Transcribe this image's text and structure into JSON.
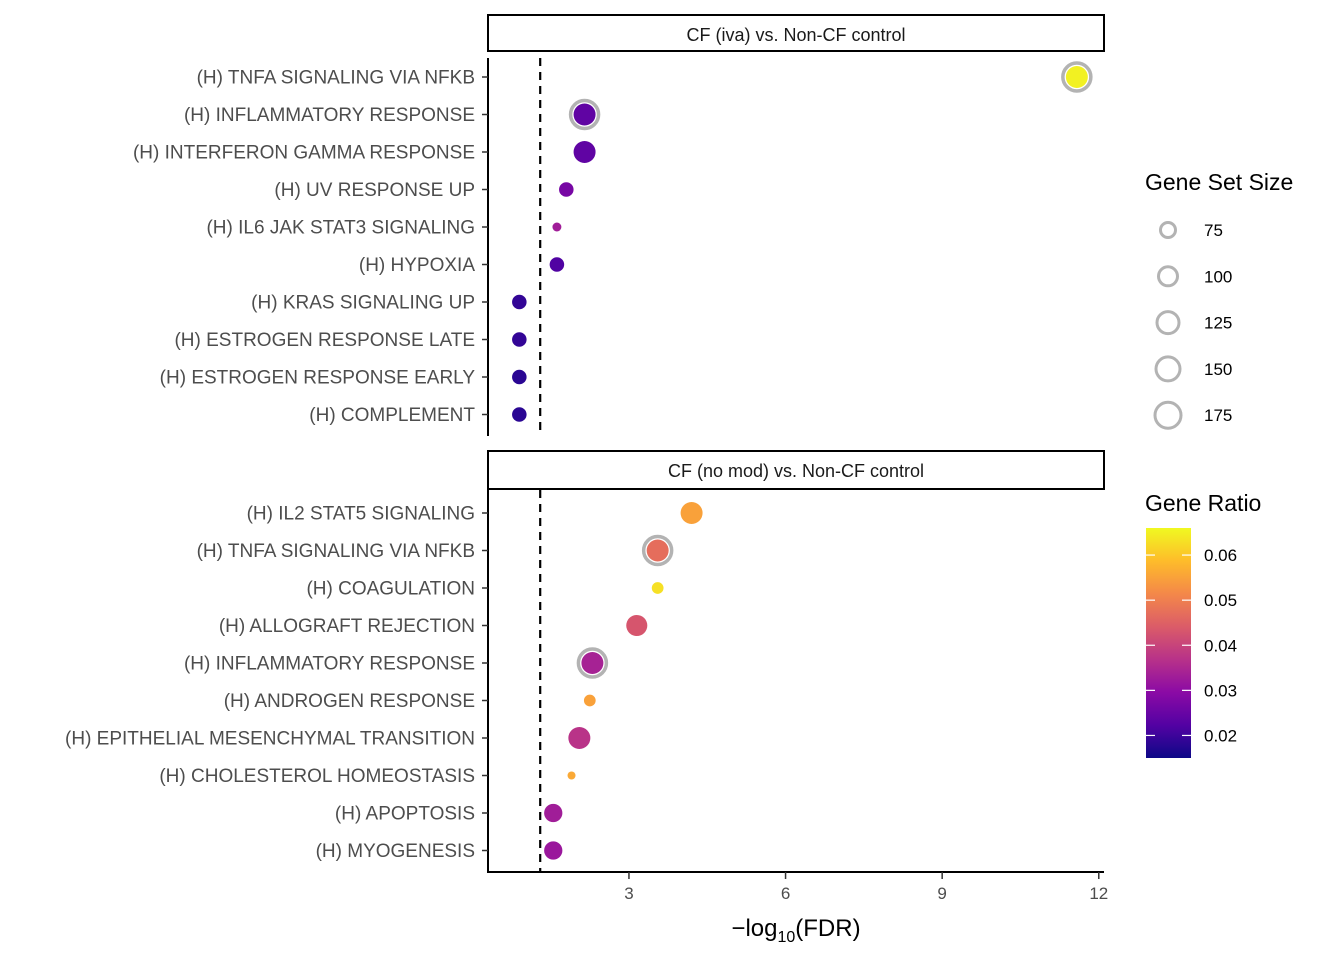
{
  "chart_data": {
    "type": "scatter",
    "subtype": "dot-plot (faceted)",
    "x_axis": {
      "label_prefix": "−log",
      "label_subscript": "10",
      "label_suffix": "(FDR)",
      "xlim": [
        0.3,
        12.1
      ],
      "ticks": [
        3,
        6,
        9,
        12
      ],
      "tick_labels": [
        "3",
        "6",
        "9",
        "12"
      ]
    },
    "threshold_line": {
      "x": 1.3,
      "style": "dashed"
    },
    "facets": [
      {
        "strip_label": "CF (iva) vs. Non-CF control",
        "categories": [
          "(H) TNFA SIGNALING VIA NFKB",
          "(H) INFLAMMATORY RESPONSE",
          "(H) INTERFERON GAMMA RESPONSE",
          "(H) UV RESPONSE UP",
          "(H) IL6 JAK STAT3 SIGNALING",
          "(H) HYPOXIA",
          "(H) KRAS SIGNALING UP",
          "(H) ESTROGEN RESPONSE LATE",
          "(H) ESTROGEN RESPONSE EARLY",
          "(H) COMPLEMENT"
        ],
        "x": [
          11.58,
          2.15,
          2.15,
          1.8,
          1.62,
          1.62,
          0.9,
          0.9,
          0.9,
          0.9
        ],
        "gene_ratio": [
          0.065,
          0.024,
          0.024,
          0.027,
          0.033,
          0.022,
          0.019,
          0.019,
          0.018,
          0.018
        ],
        "gene_set_size": [
          200,
          200,
          200,
          120,
          60,
          120,
          120,
          120,
          120,
          120
        ],
        "highlighted": [
          true,
          true,
          false,
          false,
          false,
          false,
          false,
          false,
          false,
          false
        ]
      },
      {
        "strip_label": "CF (no mod) vs. Non-CF control",
        "categories": [
          "(H) IL2 STAT5 SIGNALING",
          "(H) TNFA SIGNALING VIA NFKB",
          "(H) COAGULATION",
          "(H) ALLOGRAFT REJECTION",
          "(H) INFLAMMATORY RESPONSE",
          "(H) ANDROGEN RESPONSE",
          "(H) EPITHELIAL MESENCHYMAL TRANSITION",
          "(H) CHOLESTEROL HOMEOSTASIS",
          "(H) APOPTOSIS",
          "(H) MYOGENESIS"
        ],
        "x": [
          4.2,
          3.55,
          3.55,
          3.15,
          2.3,
          2.25,
          2.05,
          1.9,
          1.55,
          1.55
        ],
        "gene_ratio": [
          0.055,
          0.047,
          0.063,
          0.043,
          0.034,
          0.055,
          0.037,
          0.056,
          0.033,
          0.032
        ],
        "gene_set_size": [
          200,
          200,
          90,
          190,
          200,
          90,
          200,
          50,
          160,
          160
        ],
        "highlighted": [
          false,
          true,
          false,
          false,
          true,
          false,
          false,
          false,
          false,
          false
        ]
      }
    ],
    "size_legend": {
      "title": "Gene Set Size",
      "values": [
        75,
        100,
        125,
        150,
        175
      ],
      "labels": [
        "75",
        "100",
        "125",
        "150",
        "175"
      ]
    },
    "color_legend": {
      "title": "Gene Ratio",
      "range": [
        0.015,
        0.066
      ],
      "ticks": [
        0.02,
        0.03,
        0.04,
        0.05,
        0.06
      ],
      "tick_labels": [
        "0.02",
        "0.03",
        "0.04",
        "0.05",
        "0.06"
      ]
    },
    "colors": {
      "plasma_stops": [
        "#0d0887",
        "#5302a3",
        "#8b0aa5",
        "#b83289",
        "#db5c68",
        "#f48849",
        "#febc2a",
        "#f0f921"
      ],
      "highlight_ring": "#b3b3b3",
      "threshold": "#000000",
      "axis": "#000000"
    }
  }
}
